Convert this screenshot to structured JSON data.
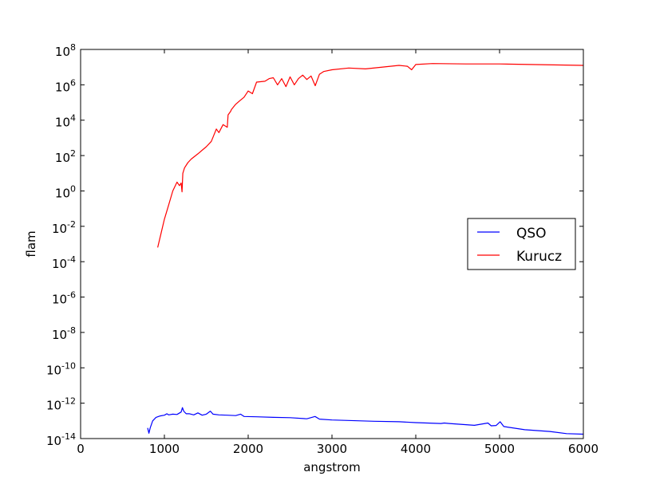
{
  "chart_data": {
    "type": "line",
    "xlabel": "angstrom",
    "ylabel": "flam",
    "xlim": [
      0,
      6000
    ],
    "ylim_log10": [
      -14,
      8
    ],
    "yscale": "log",
    "grid": false,
    "legend_position": "center-right",
    "x_ticks": [
      0,
      1000,
      2000,
      3000,
      4000,
      5000,
      6000
    ],
    "x_tick_labels": [
      "0",
      "1000",
      "2000",
      "3000",
      "4000",
      "5000",
      "6000"
    ],
    "y_ticks": [
      {
        "exp": 8,
        "base": "10",
        "sup": "8"
      },
      {
        "exp": 6,
        "base": "10",
        "sup": "6"
      },
      {
        "exp": 4,
        "base": "10",
        "sup": "4"
      },
      {
        "exp": 2,
        "base": "10",
        "sup": "2"
      },
      {
        "exp": 0,
        "base": "10",
        "sup": "0"
      },
      {
        "exp": -2,
        "base": "10",
        "sup": "-2"
      },
      {
        "exp": -4,
        "base": "10",
        "sup": "-4"
      },
      {
        "exp": -6,
        "base": "10",
        "sup": "-6"
      },
      {
        "exp": -8,
        "base": "10",
        "sup": "-8"
      },
      {
        "exp": -10,
        "base": "10",
        "sup": "-10"
      },
      {
        "exp": -12,
        "base": "10",
        "sup": "-12"
      },
      {
        "exp": -14,
        "base": "10",
        "sup": "-14"
      }
    ],
    "series": [
      {
        "name": "QSO",
        "color": "#0000ff",
        "x": [
          800,
          815,
          830,
          860,
          900,
          950,
          1000,
          1030,
          1050,
          1100,
          1150,
          1200,
          1215,
          1230,
          1260,
          1300,
          1350,
          1400,
          1450,
          1500,
          1549,
          1580,
          1650,
          1750,
          1850,
          1909,
          1950,
          2100,
          2300,
          2500,
          2700,
          2798,
          2850,
          3000,
          3500,
          3800,
          4000,
          4300,
          4340,
          4400,
          4700,
          4861,
          4900,
          4959,
          5007,
          5050,
          5300,
          5600,
          5800,
          6000
        ],
        "y_log10": [
          -13.4,
          -13.7,
          -13.4,
          -13.0,
          -12.8,
          -12.72,
          -12.68,
          -12.6,
          -12.66,
          -12.62,
          -12.64,
          -12.5,
          -12.25,
          -12.45,
          -12.6,
          -12.6,
          -12.66,
          -12.55,
          -12.68,
          -12.62,
          -12.45,
          -12.62,
          -12.66,
          -12.68,
          -12.7,
          -12.62,
          -12.75,
          -12.77,
          -12.8,
          -12.82,
          -12.88,
          -12.75,
          -12.9,
          -12.95,
          -13.02,
          -13.05,
          -13.1,
          -13.15,
          -13.12,
          -13.15,
          -13.25,
          -13.12,
          -13.28,
          -13.26,
          -13.05,
          -13.32,
          -13.5,
          -13.6,
          -13.72,
          -13.75
        ]
      },
      {
        "name": "Kurucz",
        "color": "#ff0000",
        "x": [
          920,
          960,
          1000,
          1050,
          1100,
          1150,
          1180,
          1200,
          1210,
          1220,
          1240,
          1280,
          1320,
          1400,
          1500,
          1560,
          1620,
          1650,
          1700,
          1750,
          1760,
          1790,
          1800,
          1850,
          1900,
          1950,
          2000,
          2050,
          2100,
          2200,
          2250,
          2300,
          2350,
          2400,
          2450,
          2500,
          2550,
          2600,
          2650,
          2700,
          2750,
          2800,
          2850,
          2900,
          3000,
          3200,
          3400,
          3800,
          3900,
          3950,
          4000,
          4200,
          4600,
          5000,
          6000
        ],
        "y_log10": [
          -3.2,
          -2.4,
          -1.6,
          -0.8,
          0.0,
          0.5,
          0.3,
          0.45,
          -0.05,
          1.0,
          1.3,
          1.6,
          1.8,
          2.1,
          2.5,
          2.8,
          3.5,
          3.3,
          3.75,
          3.6,
          4.3,
          4.5,
          4.6,
          4.9,
          5.1,
          5.3,
          5.65,
          5.5,
          6.15,
          6.2,
          6.35,
          6.4,
          6.0,
          6.35,
          5.9,
          6.45,
          6.0,
          6.35,
          6.55,
          6.3,
          6.5,
          5.95,
          6.6,
          6.75,
          6.85,
          6.95,
          6.9,
          7.1,
          7.05,
          6.85,
          7.15,
          7.2,
          7.18,
          7.18,
          7.1
        ]
      }
    ]
  }
}
